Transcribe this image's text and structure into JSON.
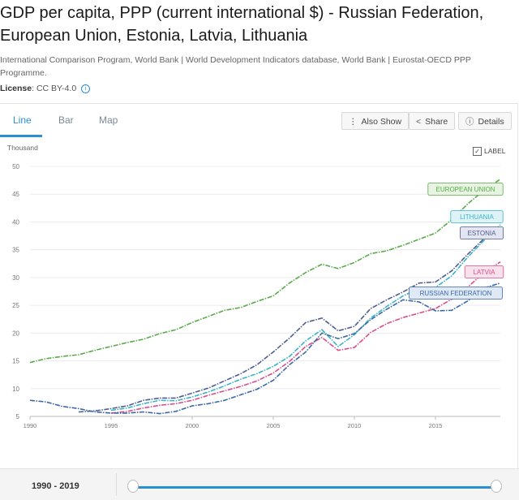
{
  "header": {
    "title": "GDP per capita, PPP (current international $) - Russian Federation, European Union, Estonia, Latvia, Lithuania",
    "source": "International Comparison Program, World Bank | World Development Indicators database, World Bank | Eurostat-OECD PPP Programme.",
    "license_label": "License",
    "license_value": ": CC BY-4.0"
  },
  "tabs": [
    {
      "label": "Line",
      "active": true
    },
    {
      "label": "Bar",
      "active": false
    },
    {
      "label": "Map",
      "active": false
    }
  ],
  "toolbar": {
    "also_show": "Also Show",
    "share": "Share",
    "details": "Details"
  },
  "unit_label": "Thousand",
  "label_toggle": "LABEL",
  "range_label": "1990 - 2019",
  "chart_data": {
    "type": "line",
    "title": "",
    "xlabel": "",
    "ylabel": "Thousand",
    "xlim": [
      1990,
      2019
    ],
    "ylim": [
      5,
      50
    ],
    "x_ticks": [
      1990,
      1995,
      2000,
      2005,
      2010,
      2015
    ],
    "y_ticks": [
      5,
      10,
      15,
      20,
      25,
      30,
      35,
      40,
      45,
      50
    ],
    "grid": true,
    "series": [
      {
        "name": "EUROPEAN UNION",
        "color": "#5aaa4a",
        "label_bg": "#e6f4e1",
        "x": [
          1990,
          1991,
          1992,
          1993,
          1994,
          1995,
          1996,
          1997,
          1998,
          1999,
          2000,
          2001,
          2002,
          2003,
          2004,
          2005,
          2006,
          2007,
          2008,
          2009,
          2010,
          2011,
          2012,
          2013,
          2014,
          2015,
          2016,
          2017,
          2018,
          2019
        ],
        "values": [
          14.7,
          15.4,
          15.8,
          16.1,
          16.9,
          17.6,
          18.3,
          18.9,
          19.9,
          20.6,
          21.9,
          23.0,
          24.1,
          24.6,
          25.7,
          26.7,
          29.0,
          30.9,
          32.4,
          31.6,
          32.7,
          34.3,
          34.8,
          35.8,
          36.9,
          38.0,
          40.4,
          43.3,
          45.7,
          47.7
        ]
      },
      {
        "name": "LITHUANIA",
        "color": "#3bb3c8",
        "label_bg": "#def3f6",
        "x": [
          1995,
          1996,
          1997,
          1998,
          1999,
          2000,
          2001,
          2002,
          2003,
          2004,
          2005,
          2006,
          2007,
          2008,
          2009,
          2010,
          2011,
          2012,
          2013,
          2014,
          2015,
          2016,
          2017,
          2018,
          2019
        ],
        "values": [
          6.1,
          6.5,
          7.3,
          7.9,
          7.8,
          8.5,
          9.4,
          10.5,
          11.7,
          12.7,
          14.0,
          15.8,
          18.6,
          20.6,
          17.6,
          19.7,
          22.7,
          24.8,
          26.7,
          28.0,
          28.2,
          30.3,
          33.7,
          36.7,
          39.5
        ]
      },
      {
        "name": "ESTONIA",
        "color": "#4f5d92",
        "label_bg": "#e3e6f2",
        "x": [
          1993,
          1994,
          1995,
          1996,
          1997,
          1998,
          1999,
          2000,
          2001,
          2002,
          2003,
          2004,
          2005,
          2006,
          2007,
          2008,
          2009,
          2010,
          2011,
          2012,
          2013,
          2014,
          2015,
          2016,
          2017,
          2018,
          2019
        ],
        "values": [
          5.8,
          6.0,
          6.4,
          6.9,
          7.9,
          8.3,
          8.3,
          9.2,
          10.1,
          11.4,
          12.7,
          14.3,
          16.6,
          19.1,
          21.9,
          22.7,
          20.4,
          21.2,
          24.4,
          26.0,
          27.4,
          29.0,
          29.2,
          31.2,
          34.2,
          37.0,
          38.8
        ]
      },
      {
        "name": "LATVIA",
        "color": "#dc4d8a",
        "label_bg": "#f9e1ec",
        "x": [
          1995,
          1996,
          1997,
          1998,
          1999,
          2000,
          2001,
          2002,
          2003,
          2004,
          2005,
          2006,
          2007,
          2008,
          2009,
          2010,
          2011,
          2012,
          2013,
          2014,
          2015,
          2016,
          2017,
          2018,
          2019
        ],
        "values": [
          5.6,
          5.9,
          6.5,
          7.0,
          7.3,
          7.9,
          8.8,
          9.6,
          10.4,
          11.4,
          12.8,
          14.9,
          17.6,
          19.2,
          16.9,
          17.4,
          20.1,
          21.7,
          22.8,
          23.6,
          24.4,
          26.1,
          28.3,
          30.9,
          32.8
        ]
      },
      {
        "name": "RUSSIAN FEDERATION",
        "color": "#3b68a8",
        "label_bg": "#dfe9f5",
        "x": [
          1990,
          1991,
          1992,
          1993,
          1994,
          1995,
          1996,
          1997,
          1998,
          1999,
          2000,
          2001,
          2002,
          2003,
          2004,
          2005,
          2006,
          2007,
          2008,
          2009,
          2010,
          2011,
          2012,
          2013,
          2014,
          2015,
          2016,
          2017,
          2018,
          2019
        ],
        "values": [
          7.9,
          7.6,
          6.8,
          6.4,
          5.8,
          5.6,
          5.6,
          5.8,
          5.5,
          5.9,
          6.9,
          7.3,
          7.9,
          8.9,
          9.9,
          11.5,
          14.3,
          16.6,
          20.0,
          19.0,
          19.9,
          22.4,
          24.3,
          26.0,
          25.6,
          24.0,
          24.1,
          25.8,
          28.1,
          29.0
        ]
      }
    ]
  }
}
